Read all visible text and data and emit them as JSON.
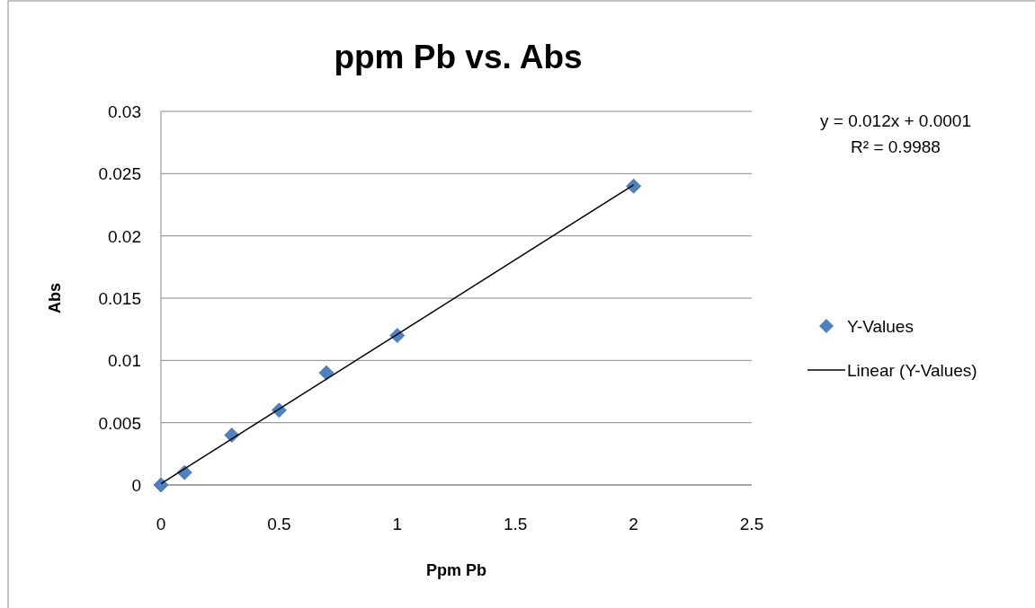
{
  "chart_data": {
    "type": "scatter",
    "title": "ppm Pb vs. Abs",
    "xlabel": "Ppm Pb",
    "ylabel": "Abs",
    "xlim": [
      0,
      2.5
    ],
    "xticks": [
      0,
      0.5,
      1,
      1.5,
      2,
      2.5
    ],
    "ylim": [
      0,
      0.03
    ],
    "yticks": [
      0,
      0.005,
      0.01,
      0.015,
      0.02,
      0.025,
      0.03
    ],
    "grid": "y",
    "legend": "right",
    "annotations": [
      "y = 0.012x + 0.0001",
      "R² = 0.9988"
    ],
    "series": [
      {
        "name": "Y-Values",
        "marker": "diamond",
        "color": "#4f81bd",
        "x": [
          0,
          0.1,
          0.3,
          0.5,
          0.7,
          1,
          2
        ],
        "values": [
          0,
          0.001,
          0.004,
          0.006,
          0.009,
          0.012,
          0.024
        ]
      },
      {
        "name": "Linear (Y-Values)",
        "type": "line",
        "marker": "none",
        "color": "#000000",
        "x": [
          0,
          2
        ],
        "values": [
          0.0001,
          0.0241
        ]
      }
    ]
  }
}
